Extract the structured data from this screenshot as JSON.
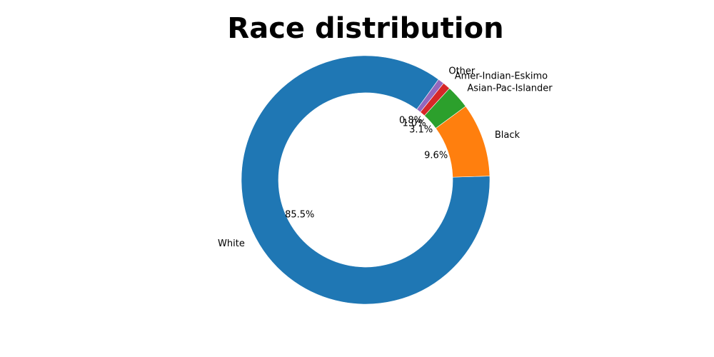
{
  "chart_data": {
    "type": "pie",
    "donut": true,
    "title": "Race distribution",
    "categories": [
      "White",
      "Black",
      "Asian-Pac-Islander",
      "Amer-Indian-Eskimo",
      "Other"
    ],
    "values": [
      85.5,
      9.6,
      3.1,
      1.0,
      0.8
    ],
    "percent_labels": [
      "85.5%",
      "9.6%",
      "3.1%",
      "1.0%",
      "0.8%"
    ],
    "colors": [
      "#1f77b4",
      "#ff7f0e",
      "#2ca02c",
      "#d62728",
      "#9467bd"
    ],
    "start_angle_deg": 54,
    "direction": "counterclockwise",
    "legend": "none"
  }
}
